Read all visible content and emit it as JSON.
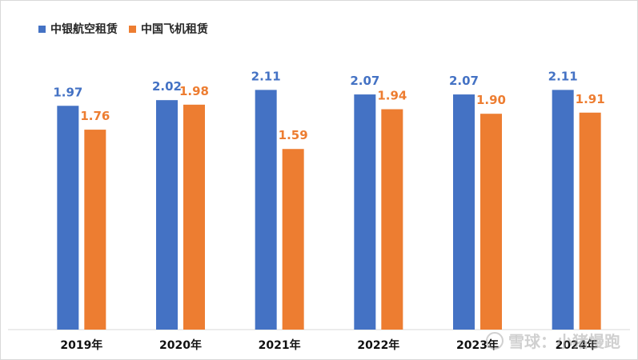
{
  "chart_data": {
    "type": "bar",
    "categories": [
      "2019年",
      "2020年",
      "2021年",
      "2022年",
      "2023年",
      "2024年"
    ],
    "series": [
      {
        "name": "中银航空租赁",
        "color": "#4472c4",
        "values": [
          1.97,
          2.02,
          2.11,
          2.07,
          2.07,
          2.11
        ],
        "labels": [
          "1.97",
          "2.02",
          "2.11",
          "2.07",
          "2.07",
          "2.11"
        ]
      },
      {
        "name": "中国飞机租赁",
        "color": "#ed7d31",
        "values": [
          1.76,
          1.98,
          1.59,
          1.94,
          1.9,
          1.91
        ],
        "labels": [
          "1.76",
          "1.98",
          "1.59",
          "1.94",
          "1.90",
          "1.91"
        ]
      }
    ],
    "ylim": [
      0,
      2.4
    ],
    "grid": false,
    "legend_position": "top-left",
    "title": "",
    "xlabel": "",
    "ylabel": ""
  },
  "watermark": {
    "text": "雪球：小猪慢跑",
    "icon": "snowball-logo-icon"
  }
}
